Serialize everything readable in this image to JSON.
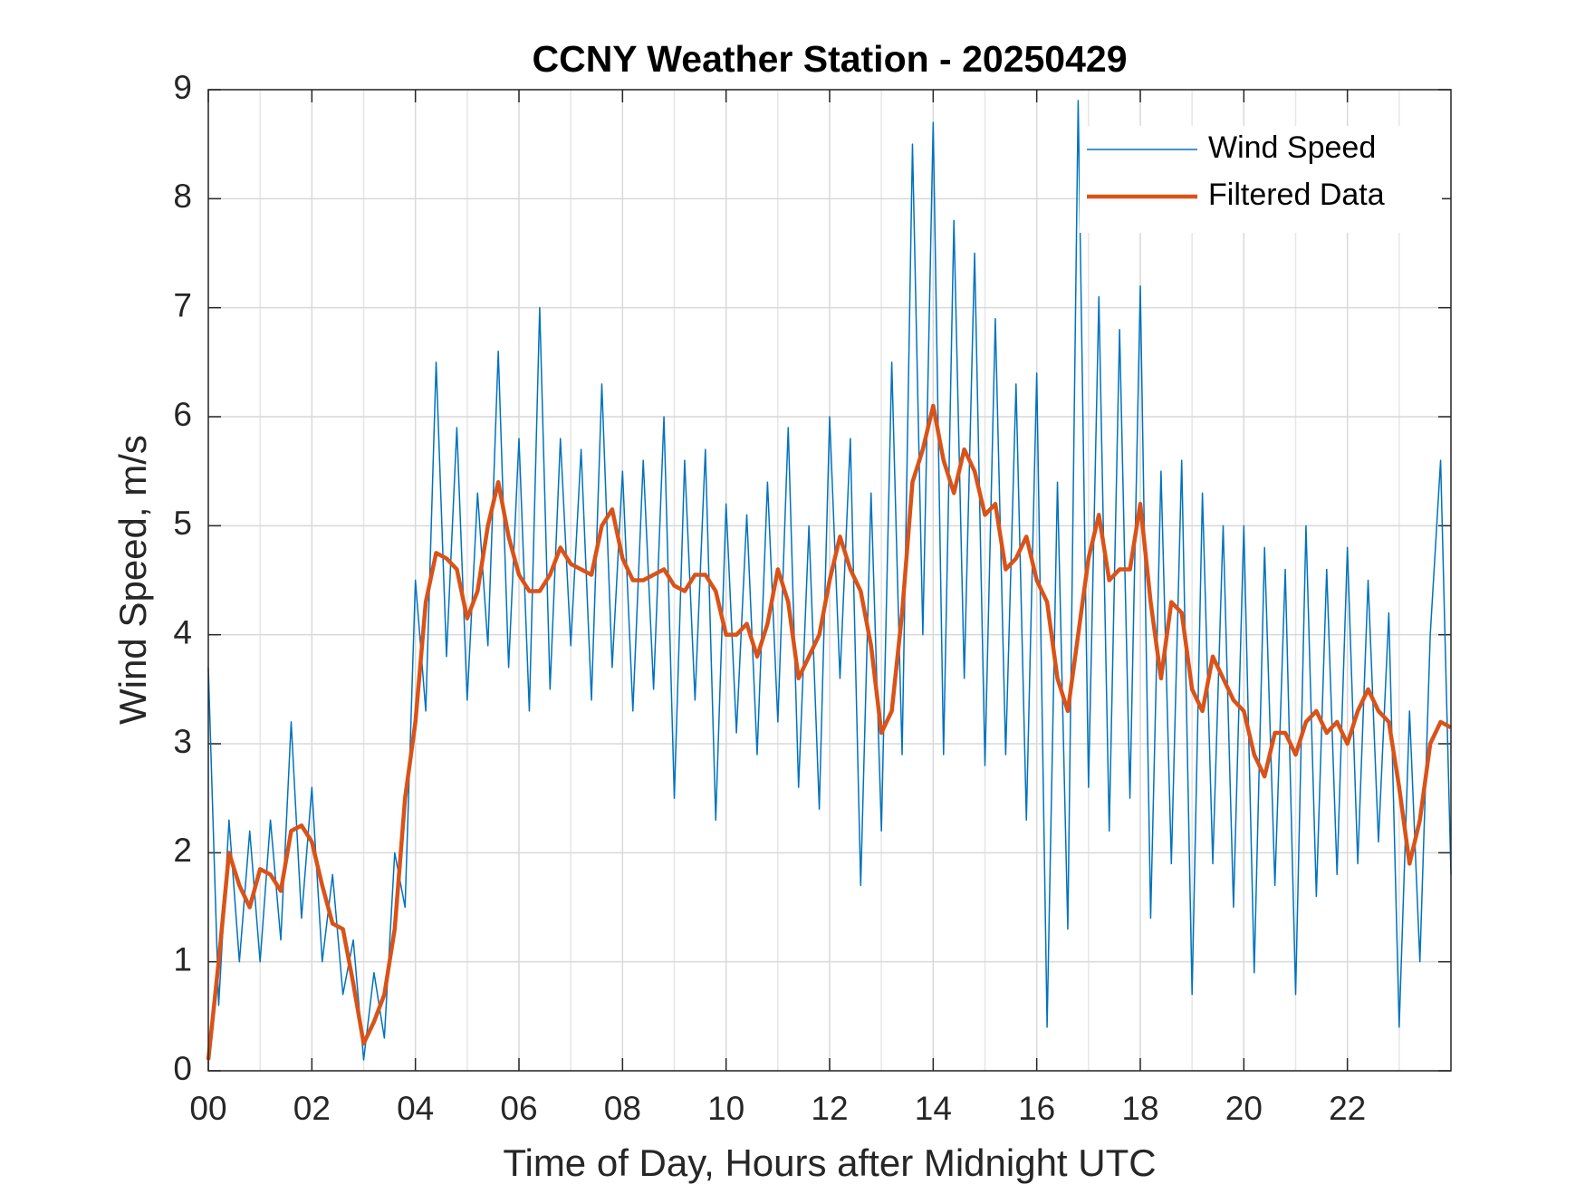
{
  "chart_data": {
    "type": "line",
    "title": "CCNY Weather Station - 20250429",
    "xlabel": "Time of Day, Hours after Midnight UTC",
    "ylabel": "Wind Speed, m/s",
    "x": [
      0,
      0.2,
      0.4,
      0.6,
      0.8,
      1,
      1.2,
      1.4,
      1.6,
      1.8,
      2,
      2.2,
      2.4,
      2.6,
      2.8,
      3,
      3.2,
      3.4,
      3.6,
      3.8,
      4,
      4.2,
      4.4,
      4.6,
      4.8,
      5,
      5.2,
      5.4,
      5.6,
      5.8,
      6,
      6.2,
      6.4,
      6.6,
      6.8,
      7,
      7.2,
      7.4,
      7.6,
      7.8,
      8,
      8.2,
      8.4,
      8.6,
      8.8,
      9,
      9.2,
      9.4,
      9.6,
      9.8,
      10,
      10.2,
      10.4,
      10.6,
      10.8,
      11,
      11.2,
      11.4,
      11.6,
      11.8,
      12,
      12.2,
      12.4,
      12.6,
      12.8,
      13,
      13.2,
      13.4,
      13.6,
      13.8,
      14,
      14.2,
      14.4,
      14.6,
      14.8,
      15,
      15.2,
      15.4,
      15.6,
      15.8,
      16,
      16.2,
      16.4,
      16.6,
      16.8,
      17,
      17.2,
      17.4,
      17.6,
      17.8,
      18,
      18.2,
      18.4,
      18.6,
      18.8,
      19,
      19.2,
      19.4,
      19.6,
      19.8,
      20,
      20.2,
      20.4,
      20.6,
      20.8,
      21,
      21.2,
      21.4,
      21.6,
      21.8,
      22,
      22.2,
      22.4,
      22.6,
      22.8,
      23,
      23.2,
      23.4,
      23.6,
      23.8,
      24
    ],
    "series": [
      {
        "name": "Wind Speed",
        "color": "#0072BD",
        "width": 1.5,
        "values": [
          3.7,
          0.6,
          2.3,
          1.0,
          2.2,
          1.0,
          2.3,
          1.2,
          3.2,
          1.4,
          2.6,
          1.0,
          1.8,
          0.7,
          1.2,
          0.1,
          0.9,
          0.3,
          2.0,
          1.5,
          4.5,
          3.3,
          6.5,
          3.8,
          5.9,
          3.4,
          5.3,
          3.9,
          6.6,
          3.7,
          5.8,
          3.3,
          7.0,
          3.5,
          5.8,
          3.9,
          5.7,
          3.4,
          6.3,
          3.7,
          5.5,
          3.3,
          5.6,
          3.5,
          6.0,
          2.5,
          5.6,
          3.4,
          5.7,
          2.3,
          5.2,
          3.1,
          5.1,
          2.9,
          5.4,
          3.2,
          5.9,
          2.6,
          5.0,
          2.4,
          6.0,
          3.6,
          5.8,
          1.7,
          5.3,
          2.2,
          6.5,
          2.9,
          8.5,
          4.0,
          8.7,
          2.9,
          7.8,
          3.6,
          7.5,
          2.8,
          6.9,
          2.9,
          6.3,
          2.3,
          6.4,
          0.4,
          5.4,
          1.3,
          8.9,
          2.6,
          7.1,
          2.2,
          6.8,
          2.5,
          7.2,
          1.4,
          5.5,
          1.9,
          5.6,
          0.7,
          5.3,
          1.9,
          5.0,
          1.5,
          5.0,
          0.9,
          4.8,
          1.7,
          4.6,
          0.7,
          5.0,
          1.6,
          4.6,
          1.8,
          4.8,
          1.9,
          4.5,
          2.1,
          4.2,
          0.4,
          3.3,
          1.0,
          4.0,
          5.6,
          1.8
        ]
      },
      {
        "name": "Filtered Data",
        "color": "#D95319",
        "width": 4.5,
        "values": [
          0.1,
          1.0,
          2.0,
          1.7,
          1.5,
          1.85,
          1.8,
          1.65,
          2.2,
          2.25,
          2.1,
          1.7,
          1.35,
          1.3,
          0.8,
          0.25,
          0.45,
          0.7,
          1.3,
          2.5,
          3.2,
          4.3,
          4.75,
          4.7,
          4.6,
          4.15,
          4.4,
          5.0,
          5.4,
          4.9,
          4.55,
          4.4,
          4.4,
          4.55,
          4.8,
          4.65,
          4.6,
          4.55,
          5.0,
          5.15,
          4.7,
          4.5,
          4.5,
          4.55,
          4.6,
          4.45,
          4.4,
          4.55,
          4.55,
          4.4,
          4.0,
          4.0,
          4.1,
          3.8,
          4.1,
          4.6,
          4.3,
          3.6,
          3.8,
          4.0,
          4.5,
          4.9,
          4.6,
          4.4,
          3.9,
          3.1,
          3.3,
          4.2,
          5.4,
          5.7,
          6.1,
          5.6,
          5.3,
          5.7,
          5.5,
          5.1,
          5.2,
          4.6,
          4.7,
          4.9,
          4.5,
          4.3,
          3.6,
          3.3,
          4.0,
          4.7,
          5.1,
          4.5,
          4.6,
          4.6,
          5.2,
          4.3,
          3.6,
          4.3,
          4.2,
          3.5,
          3.3,
          3.8,
          3.6,
          3.4,
          3.3,
          2.9,
          2.7,
          3.1,
          3.1,
          2.9,
          3.2,
          3.3,
          3.1,
          3.2,
          3.0,
          3.3,
          3.5,
          3.3,
          3.2,
          2.6,
          1.9,
          2.3,
          3.0,
          3.2,
          3.15
        ]
      }
    ],
    "xlim": [
      0,
      24
    ],
    "xticks": [
      {
        "value": 0,
        "label": "00"
      },
      {
        "value": 2,
        "label": "02"
      },
      {
        "value": 4,
        "label": "04"
      },
      {
        "value": 6,
        "label": "06"
      },
      {
        "value": 8,
        "label": "08"
      },
      {
        "value": 10,
        "label": "10"
      },
      {
        "value": 12,
        "label": "12"
      },
      {
        "value": 14,
        "label": "14"
      },
      {
        "value": 16,
        "label": "16"
      },
      {
        "value": 18,
        "label": "18"
      },
      {
        "value": 20,
        "label": "20"
      },
      {
        "value": 22,
        "label": "22"
      }
    ],
    "xminorticks": [
      1,
      3,
      5,
      7,
      9,
      11,
      13,
      15,
      17,
      19,
      21,
      23
    ],
    "ylim": [
      0,
      9
    ],
    "yticks": [
      0,
      1,
      2,
      3,
      4,
      5,
      6,
      7,
      8,
      9
    ],
    "grid": true,
    "legend": "northeast"
  }
}
